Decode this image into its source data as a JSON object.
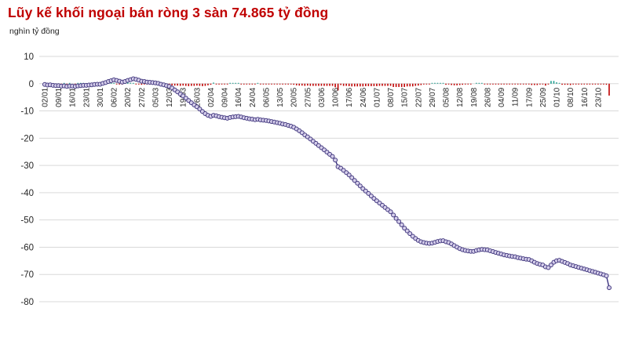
{
  "header": {
    "title": "Lũy kế khối ngoại bán ròng 3 sàn 74.865 tỷ đồng",
    "unit_label": "nghìn tỷ đồng"
  },
  "colors": {
    "title": "#c00000",
    "line": "#38307e",
    "marker_fill": "#d6cfeb",
    "marker_stroke": "#43397f",
    "bar_negative": "#c00000",
    "bar_positive": "#1d9e8f",
    "grid": "#d9d9d9",
    "axis_text": "#262626"
  },
  "chart_data": {
    "type": "line",
    "title": "Lũy kế khối ngoại bán ròng 3 sàn 74.865 tỷ đồng",
    "ylabel": "nghìn tỷ đồng",
    "ylim": [
      -80,
      10
    ],
    "yticks": [
      10,
      0,
      -10,
      -20,
      -30,
      -40,
      -50,
      -60,
      -70,
      -80
    ],
    "grid": true,
    "legend": false,
    "points_per_tick": 5,
    "x_tick_labels": [
      "02/01",
      "09/01",
      "16/01",
      "23/01",
      "30/01",
      "06/02",
      "20/02",
      "27/02",
      "05/03",
      "12/03",
      "19/03",
      "26/03",
      "02/04",
      "09/04",
      "16/04",
      "24/04",
      "06/05",
      "13/05",
      "20/05",
      "27/05",
      "03/06",
      "10/06",
      "17/06",
      "24/06",
      "01/07",
      "08/07",
      "15/07",
      "22/07",
      "29/07",
      "05/08",
      "12/08",
      "19/08",
      "26/08",
      "04/09",
      "11/09",
      "17/09",
      "25/09",
      "01/10",
      "08/10",
      "16/10",
      "23/10"
    ],
    "series": [
      {
        "name": "cumulative",
        "style": "line-markers",
        "values": [
          -0.3,
          -0.5,
          -0.4,
          -0.6,
          -0.7,
          -0.7,
          -0.9,
          -0.8,
          -1.0,
          -0.9,
          -0.9,
          -1.0,
          -0.8,
          -0.7,
          -0.6,
          -0.6,
          -0.5,
          -0.4,
          -0.3,
          -0.2,
          -0.2,
          0.1,
          0.4,
          0.8,
          1.1,
          1.4,
          1.2,
          0.9,
          0.6,
          0.8,
          1.2,
          1.5,
          1.8,
          1.6,
          1.3,
          0.9,
          0.8,
          0.6,
          0.5,
          0.4,
          0.3,
          0.1,
          -0.2,
          -0.4,
          -0.7,
          -1.0,
          -1.6,
          -2.3,
          -3.0,
          -3.8,
          -4.5,
          -5.3,
          -6.2,
          -7.0,
          -7.8,
          -8.5,
          -9.3,
          -10.2,
          -11.0,
          -11.6,
          -12.0,
          -11.6,
          -11.8,
          -12.1,
          -12.3,
          -12.5,
          -12.7,
          -12.4,
          -12.2,
          -12.1,
          -12.0,
          -12.2,
          -12.5,
          -12.7,
          -12.9,
          -13.0,
          -13.2,
          -13.1,
          -13.3,
          -13.4,
          -13.5,
          -13.7,
          -13.9,
          -14.1,
          -14.3,
          -14.5,
          -14.8,
          -15.0,
          -15.3,
          -15.6,
          -16.0,
          -16.6,
          -17.3,
          -18.0,
          -18.8,
          -19.5,
          -20.3,
          -21.1,
          -21.9,
          -22.7,
          -23.5,
          -24.3,
          -25.1,
          -25.9,
          -26.7,
          -28.0,
          -30.5,
          -31.0,
          -31.8,
          -32.6,
          -33.5,
          -34.5,
          -35.5,
          -36.5,
          -37.5,
          -38.5,
          -39.4,
          -40.3,
          -41.2,
          -42.1,
          -43.0,
          -43.8,
          -44.6,
          -45.4,
          -46.2,
          -47.0,
          -48.2,
          -49.4,
          -50.6,
          -51.8,
          -53.0,
          -54.0,
          -55.0,
          -56.0,
          -56.8,
          -57.5,
          -58.0,
          -58.3,
          -58.5,
          -58.6,
          -58.5,
          -58.2,
          -57.9,
          -57.7,
          -57.6,
          -58.0,
          -58.3,
          -58.8,
          -59.4,
          -60.0,
          -60.5,
          -60.9,
          -61.2,
          -61.4,
          -61.5,
          -61.5,
          -61.2,
          -61.0,
          -60.8,
          -60.9,
          -61.0,
          -61.3,
          -61.6,
          -61.9,
          -62.2,
          -62.5,
          -62.8,
          -63.0,
          -63.2,
          -63.4,
          -63.5,
          -63.8,
          -64.0,
          -64.2,
          -64.4,
          -64.5,
          -65.0,
          -65.5,
          -66.0,
          -66.3,
          -66.5,
          -67.2,
          -67.5,
          -66.5,
          -65.5,
          -65.0,
          -64.8,
          -65.2,
          -65.6,
          -66.0,
          -66.5,
          -66.8,
          -67.1,
          -67.4,
          -67.7,
          -68.0,
          -68.3,
          -68.6,
          -68.9,
          -69.2,
          -69.5,
          -69.8,
          -70.1,
          -70.5,
          -74.865
        ]
      },
      {
        "name": "daily-net-bars",
        "style": "bar",
        "derived_from": "daily change of cumulative series"
      }
    ]
  }
}
